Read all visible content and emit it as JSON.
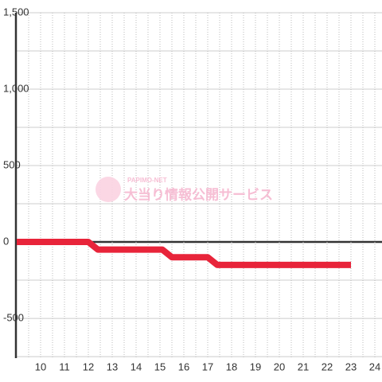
{
  "chart_data": {
    "type": "line",
    "watermark": {
      "brand": "PAPIMO-NET",
      "text": "大当り情報公開サービス"
    },
    "x": [
      9,
      12,
      12.4,
      15.1,
      15.5,
      17,
      17.4,
      23
    ],
    "series": [
      {
        "color": "#e8243a",
        "values": [
          0,
          0,
          -50,
          -50,
          -100,
          -100,
          -150,
          -150
        ]
      }
    ],
    "xlim": [
      9,
      24.3
    ],
    "ylim": [
      -760,
      1500
    ],
    "xticks": [
      10,
      11,
      12,
      13,
      14,
      15,
      16,
      17,
      18,
      19,
      20,
      21,
      22,
      23,
      24
    ],
    "yticks": [
      {
        "value": -500,
        "label": "-500"
      },
      0,
      500,
      {
        "value": 1000,
        "label": "1,000"
      },
      {
        "value": 1500,
        "label": "1,500"
      }
    ],
    "grid": true
  }
}
